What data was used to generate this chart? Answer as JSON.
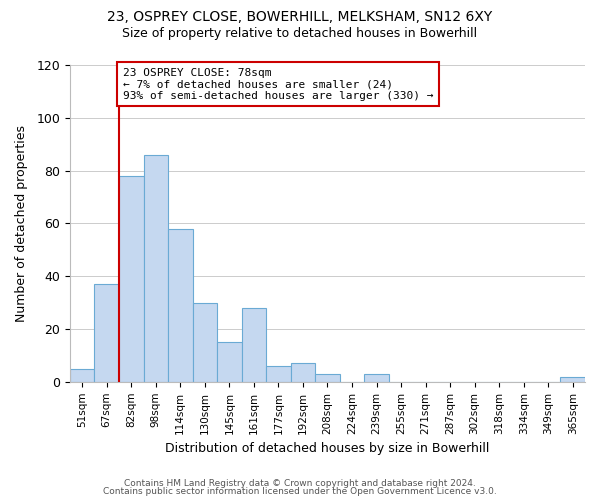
{
  "title1": "23, OSPREY CLOSE, BOWERHILL, MELKSHAM, SN12 6XY",
  "title2": "Size of property relative to detached houses in Bowerhill",
  "xlabel": "Distribution of detached houses by size in Bowerhill",
  "ylabel": "Number of detached properties",
  "bar_labels": [
    "51sqm",
    "67sqm",
    "82sqm",
    "98sqm",
    "114sqm",
    "130sqm",
    "145sqm",
    "161sqm",
    "177sqm",
    "192sqm",
    "208sqm",
    "224sqm",
    "239sqm",
    "255sqm",
    "271sqm",
    "287sqm",
    "302sqm",
    "318sqm",
    "334sqm",
    "349sqm",
    "365sqm"
  ],
  "bar_values": [
    5,
    37,
    78,
    86,
    58,
    30,
    15,
    28,
    6,
    7,
    3,
    0,
    3,
    0,
    0,
    0,
    0,
    0,
    0,
    0,
    2
  ],
  "bar_color": "#c5d8f0",
  "bar_edge_color": "#6aaad4",
  "property_line_idx": 2,
  "property_line_color": "#cc0000",
  "annotation_line1": "23 OSPREY CLOSE: 78sqm",
  "annotation_line2": "← 7% of detached houses are smaller (24)",
  "annotation_line3": "93% of semi-detached houses are larger (330) →",
  "annotation_box_color": "#ffffff",
  "annotation_box_edge_color": "#cc0000",
  "ylim": [
    0,
    120
  ],
  "yticks": [
    0,
    20,
    40,
    60,
    80,
    100,
    120
  ],
  "footer1": "Contains HM Land Registry data © Crown copyright and database right 2024.",
  "footer2": "Contains public sector information licensed under the Open Government Licence v3.0.",
  "background_color": "#ffffff",
  "grid_color": "#cccccc"
}
